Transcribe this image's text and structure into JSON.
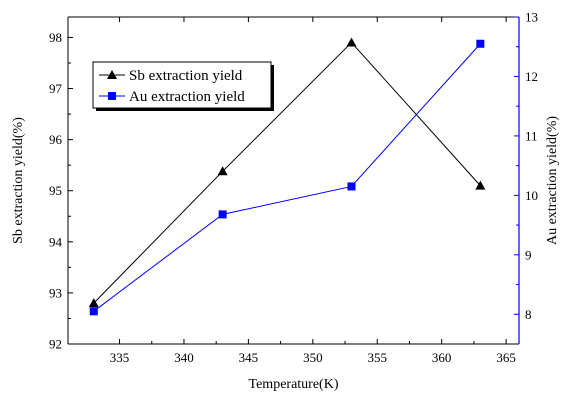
{
  "chart_data": {
    "type": "line",
    "title": "",
    "xlabel": "Temperature(K)",
    "ylabel_left": "Sb extraction yield(%)",
    "ylabel_right": "Au extraction yield(%)",
    "x": [
      333,
      343,
      353,
      363
    ],
    "xlim": [
      331,
      366
    ],
    "xticks": [
      335,
      340,
      345,
      350,
      355,
      360,
      365
    ],
    "ylim_left": [
      92,
      98.4
    ],
    "yticks_left": [
      92,
      93,
      94,
      95,
      96,
      97,
      98
    ],
    "ylim_right": [
      7.5,
      13
    ],
    "yticks_right": [
      8,
      9,
      10,
      11,
      12,
      13
    ],
    "grid": false,
    "legend_position": "top-left",
    "series": [
      {
        "name": "Sb extraction yield",
        "axis": "left",
        "marker": "triangle",
        "color": "#000000",
        "values": [
          92.8,
          95.38,
          97.9,
          95.1
        ]
      },
      {
        "name": "Au extraction yield",
        "axis": "right",
        "marker": "square",
        "color": "#0000ff",
        "values": [
          8.05,
          9.68,
          10.15,
          12.55
        ]
      }
    ]
  },
  "colors": {
    "left_axis": "#000000",
    "right_axis": "#0000ff"
  }
}
